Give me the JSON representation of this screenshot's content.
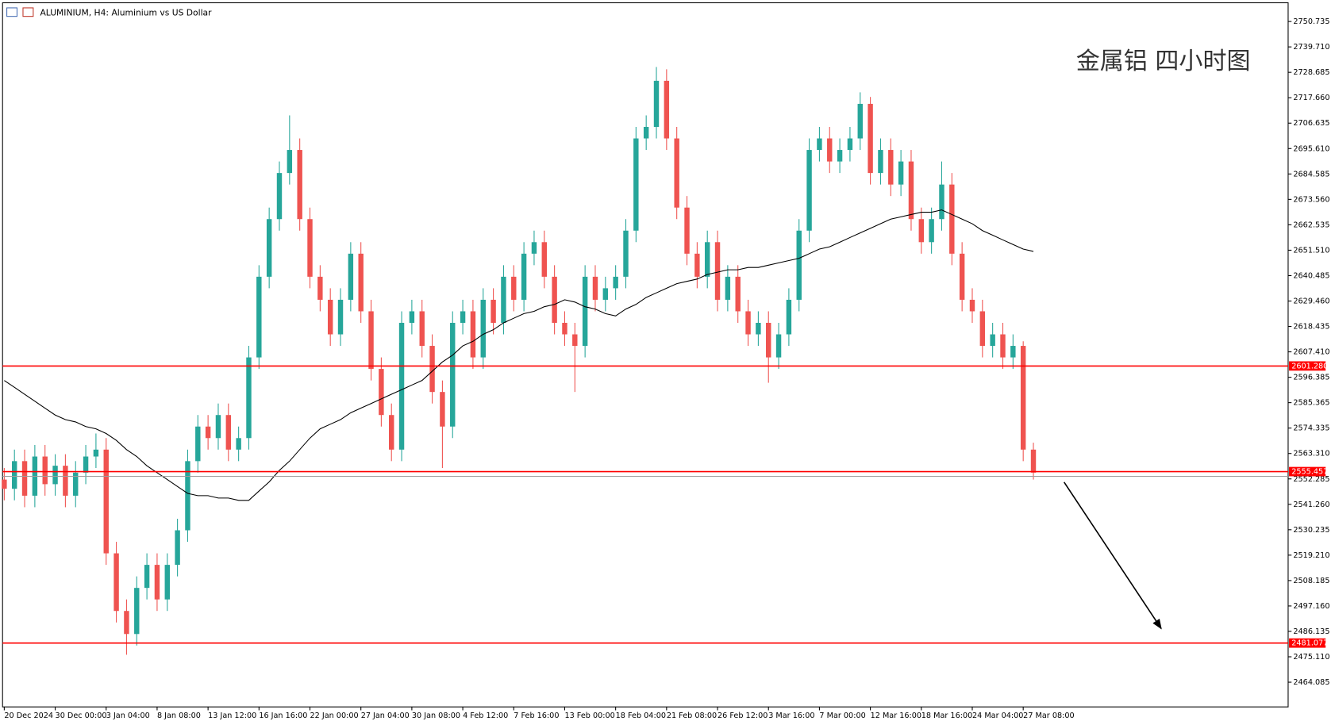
{
  "chart_data": {
    "type": "candlestick",
    "title": "ALUMINIUM, H4:  Aluminium vs US Dollar",
    "annotation": "金属铝 四小时图",
    "up_color": "#26a69a",
    "down_color": "#ef5350",
    "xlim": [
      0,
      126
    ],
    "ylim": [
      2453.37,
      2758.12
    ],
    "yticks": [
      2750.735,
      {
        "value": 2739.71,
        "label": "2739.710"
      },
      2728.685,
      {
        "value": 2717.66,
        "label": "2717.660"
      },
      2706.635,
      {
        "value": 2695.61,
        "label": "2695.610"
      },
      2684.585,
      {
        "value": 2673.56,
        "label": "2673.560"
      },
      2662.535,
      {
        "value": 2651.51,
        "label": "2651.510"
      },
      2640.485,
      {
        "value": 2629.46,
        "label": "2629.460"
      },
      2618.435,
      {
        "value": 2607.41,
        "label": "2607.410"
      },
      2596.385,
      2585.365,
      2574.335,
      {
        "value": 2563.31,
        "label": "2563.310"
      },
      2552.285,
      {
        "value": 2541.26,
        "label": "2541.260"
      },
      2530.235,
      {
        "value": 2519.21,
        "label": "2519.210"
      },
      2508.185,
      {
        "value": 2497.16,
        "label": "2497.160"
      },
      2486.135,
      {
        "value": 2475.11,
        "label": "2475.110"
      },
      2464.085
    ],
    "xticks": [
      {
        "value": 0,
        "label": "20 Dec 2024"
      },
      {
        "value": 5,
        "label": "30 Dec 00:00"
      },
      {
        "value": 10,
        "label": "3 Jan 04:00"
      },
      {
        "value": 15,
        "label": "8 Jan 08:00"
      },
      {
        "value": 20,
        "label": "13 Jan 12:00"
      },
      {
        "value": 25,
        "label": "16 Jan 16:00"
      },
      {
        "value": 30,
        "label": "22 Jan 00:00"
      },
      {
        "value": 35,
        "label": "27 Jan 04:00"
      },
      {
        "value": 40,
        "label": "30 Jan 08:00"
      },
      {
        "value": 45,
        "label": "4 Feb 12:00"
      },
      {
        "value": 50,
        "label": "7 Feb 16:00"
      },
      {
        "value": 55,
        "label": "13 Feb 00:00"
      },
      {
        "value": 60,
        "label": "18 Feb 04:00"
      },
      {
        "value": 65,
        "label": "21 Feb 08:00"
      },
      {
        "value": 70,
        "label": "26 Feb 12:00"
      },
      {
        "value": 75,
        "label": "3 Mar 16:00"
      },
      {
        "value": 80,
        "label": "7 Mar 00:00"
      },
      {
        "value": 85,
        "label": "12 Mar 16:00"
      },
      {
        "value": 90,
        "label": "18 Mar 16:00"
      },
      {
        "value": 95,
        "label": "24 Mar 04:00"
      },
      {
        "value": 100,
        "label": "27 Mar 08:00"
      }
    ],
    "open": [
      2552,
      2548,
      2560,
      2545,
      2562,
      2550,
      2558,
      2545,
      2555,
      2562,
      2565,
      2520,
      2495,
      2485,
      2505,
      2515,
      2500,
      2515,
      2530,
      2560,
      2575,
      2570,
      2580,
      2565,
      2570,
      2605,
      2640,
      2665,
      2685,
      2695,
      2665,
      2640,
      2630,
      2615,
      2630,
      2650,
      2625,
      2600,
      2580,
      2565,
      2620,
      2625,
      2610,
      2590,
      2575,
      2620,
      2625,
      2605,
      2630,
      2620,
      2640,
      2630,
      2650,
      2655,
      2640,
      2620,
      2615,
      2610,
      2640,
      2630,
      2635,
      2640,
      2660,
      2700,
      2705,
      2725,
      2700,
      2670,
      2650,
      2640,
      2655,
      2630,
      2640,
      2625,
      2615,
      2620,
      2605,
      2615,
      2630,
      2660,
      2695,
      2700,
      2690,
      2695,
      2700,
      2715,
      2685,
      2695,
      2680,
      2690,
      2665,
      2655,
      2665,
      2680,
      2650,
      2630,
      2625,
      2610,
      2615,
      2605,
      2610,
      2565
    ],
    "high": [
      2557,
      2565,
      2565,
      2567,
      2567,
      2563,
      2563,
      2560,
      2567,
      2572,
      2570,
      2525,
      2500,
      2510,
      2520,
      2520,
      2520,
      2535,
      2565,
      2580,
      2580,
      2585,
      2585,
      2575,
      2610,
      2645,
      2670,
      2690,
      2710,
      2700,
      2670,
      2645,
      2635,
      2635,
      2655,
      2655,
      2630,
      2605,
      2585,
      2625,
      2630,
      2630,
      2615,
      2595,
      2625,
      2630,
      2630,
      2635,
      2635,
      2645,
      2645,
      2655,
      2660,
      2660,
      2645,
      2625,
      2620,
      2645,
      2645,
      2640,
      2645,
      2665,
      2705,
      2710,
      2731,
      2730,
      2705,
      2675,
      2655,
      2660,
      2660,
      2645,
      2645,
      2630,
      2625,
      2625,
      2620,
      2635,
      2665,
      2700,
      2705,
      2705,
      2700,
      2705,
      2720,
      2718,
      2700,
      2700,
      2695,
      2695,
      2670,
      2670,
      2690,
      2685,
      2655,
      2635,
      2630,
      2620,
      2620,
      2615,
      2612,
      2568
    ],
    "low": [
      2543,
      2543,
      2540,
      2540,
      2545,
      2545,
      2540,
      2540,
      2550,
      2557,
      2515,
      2490,
      2476,
      2480,
      2500,
      2495,
      2495,
      2510,
      2525,
      2555,
      2565,
      2565,
      2560,
      2560,
      2565,
      2600,
      2635,
      2660,
      2680,
      2660,
      2635,
      2625,
      2610,
      2610,
      2625,
      2620,
      2595,
      2575,
      2560,
      2560,
      2615,
      2605,
      2585,
      2557,
      2570,
      2615,
      2600,
      2600,
      2615,
      2615,
      2625,
      2625,
      2645,
      2635,
      2615,
      2610,
      2590,
      2605,
      2625,
      2625,
      2630,
      2635,
      2655,
      2695,
      2700,
      2695,
      2665,
      2645,
      2635,
      2635,
      2625,
      2625,
      2620,
      2610,
      2610,
      2594,
      2600,
      2610,
      2625,
      2655,
      2690,
      2685,
      2685,
      2690,
      2695,
      2680,
      2680,
      2675,
      2675,
      2660,
      2650,
      2650,
      2660,
      2645,
      2625,
      2620,
      2605,
      2605,
      2600,
      2600,
      2560,
      2552
    ],
    "close": [
      2548,
      2560,
      2545,
      2562,
      2550,
      2558,
      2545,
      2555,
      2562,
      2565,
      2520,
      2495,
      2485,
      2505,
      2515,
      2500,
      2515,
      2530,
      2560,
      2575,
      2570,
      2580,
      2565,
      2570,
      2605,
      2640,
      2665,
      2685,
      2695,
      2665,
      2640,
      2630,
      2615,
      2630,
      2650,
      2625,
      2600,
      2580,
      2565,
      2620,
      2625,
      2610,
      2590,
      2575,
      2620,
      2625,
      2605,
      2630,
      2620,
      2640,
      2630,
      2650,
      2655,
      2640,
      2620,
      2615,
      2610,
      2640,
      2630,
      2635,
      2640,
      2660,
      2700,
      2705,
      2725,
      2700,
      2670,
      2650,
      2640,
      2655,
      2630,
      2640,
      2625,
      2615,
      2620,
      2605,
      2615,
      2630,
      2660,
      2695,
      2700,
      2690,
      2695,
      2700,
      2715,
      2685,
      2695,
      2680,
      2690,
      2665,
      2655,
      2665,
      2680,
      2650,
      2630,
      2625,
      2610,
      2615,
      2605,
      2610,
      2565,
      2555
    ],
    "moving_average": {
      "color": "#000000",
      "values": [
        2595,
        2592,
        2589,
        2586,
        2583,
        2580,
        2578,
        2577,
        2575,
        2574,
        2572,
        2569,
        2565,
        2562,
        2558,
        2555,
        2552,
        2549,
        2546,
        2545,
        2545,
        2544,
        2544,
        2543,
        2543,
        2547,
        2551,
        2556,
        2560,
        2565,
        2570,
        2574,
        2576,
        2578,
        2581,
        2583,
        2585,
        2587,
        2589,
        2591,
        2593,
        2595,
        2599,
        2603,
        2606,
        2610,
        2612,
        2615,
        2617,
        2620,
        2622,
        2624,
        2625,
        2627,
        2628,
        2630,
        2629,
        2627,
        2626,
        2624,
        2623,
        2626,
        2628,
        2631,
        2633,
        2635,
        2637,
        2638,
        2639,
        2641,
        2642,
        2643,
        2643,
        2644,
        2644,
        2645,
        2646,
        2647,
        2648,
        2650,
        2652,
        2653,
        2655,
        2657,
        2659,
        2661,
        2663,
        2665,
        2666,
        2667,
        2668,
        2668,
        2669,
        2667,
        2665,
        2663,
        2660,
        2658,
        2656,
        2654,
        2652,
        2651
      ]
    },
    "levels": [
      {
        "value": 2601.28,
        "label": "2601.280",
        "color": "#ff0000"
      },
      {
        "value": 2555.457,
        "label": "2555.457",
        "color": "#ff0000"
      },
      {
        "value": 2481.077,
        "label": "2481.077",
        "color": "#ff0000"
      }
    ],
    "last_price_line": {
      "value": 2553.4,
      "color": "#9e9e9e"
    }
  }
}
